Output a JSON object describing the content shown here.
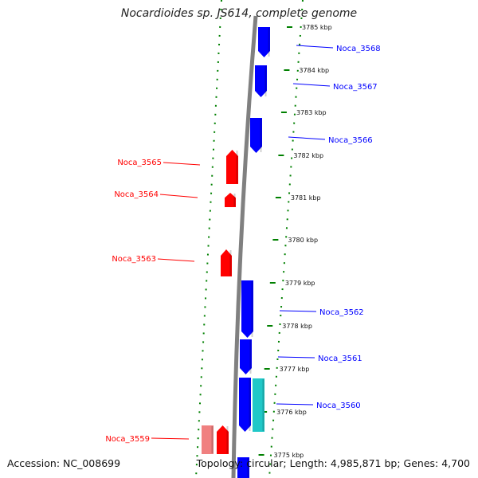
{
  "title": "Nocardioides sp. JS614, complete genome",
  "footer": {
    "accession": "Accession: NC_008699",
    "summary": "Topology: circular; Length: 4,985,871 bp; Genes: 4,700"
  },
  "colors": {
    "forward_gene": "#0000ff",
    "reverse_gene": "#ff0000",
    "pseudo_reverse": "#f08080",
    "other_feature": "#20c8c8",
    "backbone": "#808080",
    "tick_marks": "#008000"
  },
  "scale_ticks": [
    "3785 kbp",
    "3784 kbp",
    "3783 kbp",
    "3782 kbp",
    "3781 kbp",
    "3780 kbp",
    "3779 kbp",
    "3778 kbp",
    "3777 kbp",
    "3776 kbp",
    "3775 kbp"
  ],
  "genes_forward": [
    {
      "label": "Noca_3568"
    },
    {
      "label": "Noca_3567"
    },
    {
      "label": "Noca_3566"
    },
    {
      "label": "Noca_3562"
    },
    {
      "label": "Noca_3561"
    },
    {
      "label": "Noca_3560"
    }
  ],
  "genes_reverse": [
    {
      "label": "Noca_3565"
    },
    {
      "label": "Noca_3564"
    },
    {
      "label": "Noca_3563"
    },
    {
      "label": "Noca_3559"
    }
  ]
}
